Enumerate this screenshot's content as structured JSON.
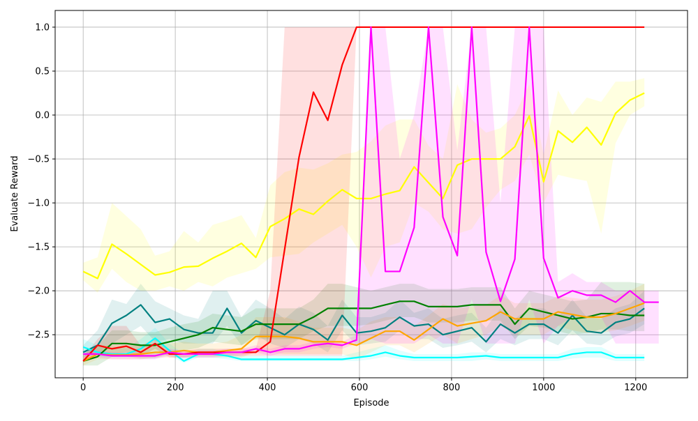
{
  "chart_data": {
    "type": "line",
    "xlabel": "Episode",
    "ylabel": "Evaluate Reward",
    "x": [
      0,
      31.25,
      62.5,
      93.75,
      125,
      156.25,
      187.5,
      218.75,
      250,
      281.25,
      312.5,
      343.75,
      375,
      406.25,
      437.5,
      468.75,
      500,
      531.25,
      562.5,
      593.75,
      625,
      656.25,
      687.5,
      718.75,
      750,
      781.25,
      812.5,
      843.75,
      875,
      906.25,
      937.5,
      968.75,
      1000,
      1031.25,
      1062.5,
      1093.75,
      1125,
      1156.25,
      1187.5,
      1218.75,
      1250
    ],
    "xlim": [
      -60.9,
      1312.5
    ],
    "ylim": [
      -2.99,
      1.19
    ],
    "xticks": [
      0,
      200,
      400,
      600,
      800,
      1000,
      1200
    ],
    "yticks": [
      {
        "value": -2.5,
        "label": "−2.5"
      },
      {
        "value": -2.0,
        "label": "−2.0"
      },
      {
        "value": -1.5,
        "label": "−1.5"
      },
      {
        "value": -1.0,
        "label": "−1.0"
      },
      {
        "value": -0.5,
        "label": "−0.5"
      },
      {
        "value": 0.0,
        "label": "0.0"
      },
      0.5,
      {
        "value": 1.0,
        "label": "1.0"
      }
    ],
    "grid": true,
    "series": [
      {
        "color": "#008080",
        "values": [
          -2.7,
          -2.62,
          -2.37,
          -2.28,
          -2.16,
          -2.36,
          -2.32,
          -2.44,
          -2.48,
          -2.48,
          -2.2,
          -2.48,
          -2.34,
          -2.42,
          -2.5,
          -2.38,
          -2.44,
          -2.56,
          -2.28,
          -2.48,
          -2.46,
          -2.42,
          -2.3,
          -2.4,
          -2.38,
          -2.5,
          -2.46,
          -2.42,
          -2.58,
          -2.38,
          -2.48,
          -2.38,
          -2.38,
          -2.48,
          -2.28,
          -2.46,
          -2.48,
          -2.36,
          -2.32,
          -2.2,
          null
        ],
        "lower": [
          -2.75,
          -2.72,
          -2.6,
          -2.5,
          -2.4,
          -2.58,
          -2.55,
          -2.6,
          -2.6,
          -2.6,
          -2.4,
          -2.62,
          -2.5,
          -2.6,
          -2.65,
          -2.55,
          -2.6,
          -2.7,
          -2.45,
          -2.62,
          -2.6,
          -2.58,
          -2.45,
          -2.55,
          -2.55,
          -2.65,
          -2.62,
          -2.58,
          -2.7,
          -2.55,
          -2.62,
          -2.55,
          -2.55,
          -2.62,
          -2.45,
          -2.6,
          -2.62,
          -2.52,
          -2.48,
          -2.38,
          null
        ],
        "upper": [
          -2.62,
          -2.45,
          -2.1,
          -2.15,
          -1.92,
          -2.12,
          -2.2,
          -2.28,
          -2.32,
          -2.0,
          -2.0,
          -2.3,
          -2.1,
          -2.2,
          -2.32,
          -2.18,
          -2.25,
          -2.4,
          -2.1,
          -2.3,
          -2.3,
          -2.25,
          -2.1,
          -2.25,
          -2.2,
          -2.32,
          -2.28,
          -2.25,
          -2.42,
          -2.2,
          -2.32,
          -2.2,
          -2.2,
          -2.3,
          -2.1,
          -2.3,
          -2.32,
          -2.2,
          -2.15,
          -2.0,
          null
        ]
      },
      {
        "color": "#00ffff",
        "values": [
          -2.64,
          -2.7,
          -2.72,
          -2.72,
          -2.66,
          -2.54,
          -2.68,
          -2.8,
          -2.72,
          -2.72,
          -2.74,
          -2.78,
          -2.78,
          -2.78,
          -2.78,
          -2.78,
          -2.78,
          -2.78,
          -2.78,
          -2.76,
          -2.74,
          -2.7,
          -2.74,
          -2.76,
          -2.76,
          -2.76,
          -2.76,
          -2.75,
          -2.74,
          -2.76,
          -2.76,
          -2.76,
          -2.76,
          -2.76,
          -2.72,
          -2.7,
          -2.7,
          -2.76,
          -2.76,
          -2.76,
          null
        ],
        "lower": [
          -2.72,
          -2.75,
          -2.76,
          -2.76,
          -2.74,
          -2.66,
          -2.74,
          -2.82,
          -2.76,
          -2.76,
          -2.78,
          -2.8,
          -2.8,
          -2.8,
          -2.8,
          -2.8,
          -2.8,
          -2.8,
          -2.8,
          -2.8,
          -2.78,
          -2.75,
          -2.78,
          -2.8,
          -2.8,
          -2.8,
          -2.8,
          -2.8,
          -2.78,
          -2.8,
          -2.8,
          -2.8,
          -2.8,
          -2.8,
          -2.77,
          -2.76,
          -2.76,
          -2.8,
          -2.8,
          -2.8,
          null
        ],
        "upper": [
          -2.55,
          -2.62,
          -2.65,
          -2.65,
          -2.55,
          -2.42,
          -2.6,
          -2.72,
          -2.66,
          -2.66,
          -2.7,
          -2.74,
          -2.74,
          -2.74,
          -2.74,
          -2.74,
          -2.74,
          -2.74,
          -2.74,
          -2.7,
          -2.66,
          -2.62,
          -2.68,
          -2.72,
          -2.72,
          -2.72,
          -2.72,
          -2.7,
          -2.7,
          -2.72,
          -2.72,
          -2.72,
          -2.72,
          -2.72,
          -2.66,
          -2.64,
          -2.64,
          -2.72,
          -2.72,
          -2.72,
          null
        ]
      },
      {
        "color": "#008000",
        "values": [
          -2.8,
          -2.75,
          -2.6,
          -2.6,
          -2.62,
          -2.62,
          -2.58,
          -2.54,
          -2.5,
          -2.42,
          -2.44,
          -2.46,
          -2.38,
          -2.38,
          -2.38,
          -2.38,
          -2.3,
          -2.2,
          -2.2,
          -2.2,
          -2.2,
          -2.16,
          -2.12,
          -2.12,
          -2.18,
          -2.18,
          -2.18,
          -2.16,
          -2.16,
          -2.16,
          -2.38,
          -2.2,
          -2.24,
          -2.28,
          -2.32,
          -2.3,
          -2.26,
          -2.26,
          -2.28,
          -2.28,
          null
        ],
        "lower": [
          -2.85,
          -2.85,
          -2.75,
          -2.75,
          -2.77,
          -2.77,
          -2.72,
          -2.68,
          -2.65,
          -2.58,
          -2.6,
          -2.62,
          -2.55,
          -2.55,
          -2.55,
          -2.55,
          -2.46,
          -2.4,
          -2.4,
          -2.4,
          -2.38,
          -2.34,
          -2.3,
          -2.3,
          -2.36,
          -2.36,
          -2.36,
          -2.34,
          -2.34,
          -2.34,
          -2.55,
          -2.4,
          -2.42,
          -2.46,
          -2.5,
          -2.48,
          -2.44,
          -2.44,
          -2.46,
          -2.46,
          null
        ],
        "upper": [
          -2.72,
          -2.62,
          -2.45,
          -2.45,
          -2.47,
          -2.47,
          -2.42,
          -2.38,
          -2.35,
          -2.26,
          -2.28,
          -2.3,
          -2.2,
          -2.2,
          -2.2,
          -2.2,
          -2.1,
          -1.92,
          -1.92,
          -1.96,
          -2.0,
          -1.96,
          -1.92,
          -1.92,
          -1.98,
          -1.98,
          -1.98,
          -1.96,
          -1.96,
          -1.96,
          -2.2,
          -2.0,
          -2.04,
          -2.08,
          -2.12,
          -2.1,
          -1.9,
          -1.9,
          -1.9,
          -1.92,
          null
        ]
      },
      {
        "color": "#ffa500",
        "values": [
          -2.8,
          -2.72,
          -2.73,
          -2.73,
          -2.72,
          -2.7,
          -2.7,
          -2.68,
          -2.7,
          -2.7,
          -2.68,
          -2.66,
          -2.52,
          -2.52,
          -2.52,
          -2.54,
          -2.58,
          -2.58,
          -2.58,
          -2.62,
          -2.54,
          -2.46,
          -2.46,
          -2.56,
          -2.44,
          -2.32,
          -2.4,
          -2.37,
          -2.34,
          -2.24,
          -2.32,
          -2.32,
          -2.32,
          -2.24,
          -2.27,
          -2.3,
          -2.3,
          -2.26,
          -2.2,
          -2.14,
          null
        ],
        "lower": [
          -2.85,
          -2.78,
          -2.78,
          -2.78,
          -2.78,
          -2.76,
          -2.76,
          -2.76,
          -2.76,
          -2.76,
          -2.76,
          -2.76,
          -2.7,
          -2.7,
          -2.72,
          -2.72,
          -2.72,
          -2.72,
          -2.72,
          -2.78,
          -2.7,
          -2.62,
          -2.62,
          -2.7,
          -2.6,
          -2.5,
          -2.6,
          -2.55,
          -2.5,
          -2.4,
          -2.5,
          -2.5,
          -2.5,
          -2.4,
          -2.45,
          -2.48,
          -2.48,
          -2.45,
          -2.4,
          -2.34,
          null
        ],
        "upper": [
          -2.72,
          -2.62,
          -2.62,
          -2.62,
          -2.62,
          -2.6,
          -2.6,
          -2.58,
          -2.6,
          -2.6,
          -2.58,
          -2.5,
          -2.3,
          -2.3,
          -2.3,
          -2.35,
          -2.42,
          -2.42,
          -2.42,
          -2.45,
          -2.35,
          -2.3,
          -2.3,
          -2.4,
          -2.28,
          -2.15,
          -2.2,
          -2.18,
          -2.16,
          -2.05,
          -2.14,
          -2.14,
          -2.14,
          -2.06,
          -2.08,
          -2.1,
          -2.1,
          -2.06,
          -2.0,
          -1.92,
          null
        ]
      },
      {
        "color": "#ffff00",
        "values": [
          -1.78,
          -1.86,
          -1.47,
          -1.58,
          -1.7,
          -1.82,
          -1.79,
          -1.73,
          -1.72,
          -1.63,
          -1.55,
          -1.46,
          -1.62,
          -1.27,
          -1.18,
          -1.07,
          -1.13,
          -0.98,
          -0.85,
          -0.95,
          -0.95,
          -0.9,
          -0.86,
          -0.59,
          -0.77,
          -0.95,
          -0.57,
          -0.5,
          -0.5,
          -0.5,
          -0.36,
          -0.01,
          -0.76,
          -0.18,
          -0.31,
          -0.14,
          -0.34,
          0.02,
          0.17,
          0.25,
          null
        ],
        "lower": [
          -1.88,
          -2.02,
          -1.75,
          -1.9,
          -2.0,
          -2.0,
          -1.95,
          -2.0,
          -1.9,
          -1.95,
          -1.85,
          -1.8,
          -1.75,
          -1.62,
          -1.6,
          -1.58,
          -1.45,
          -1.35,
          -1.25,
          -1.5,
          -1.85,
          -1.5,
          -1.45,
          -1.0,
          -1.1,
          -1.3,
          -1.35,
          -1.3,
          -1.05,
          -0.85,
          -0.75,
          -0.45,
          -1.0,
          -0.68,
          -0.72,
          -0.75,
          -1.35,
          -0.32,
          0.0,
          0.1,
          null
        ],
        "upper": [
          -1.68,
          -1.62,
          -1.0,
          -1.15,
          -1.3,
          -1.6,
          -1.55,
          -1.32,
          -1.45,
          -1.25,
          -1.2,
          -1.14,
          -1.4,
          -0.8,
          -0.65,
          -0.6,
          -0.62,
          -0.55,
          -0.45,
          -0.42,
          -0.3,
          -0.12,
          -0.05,
          -0.05,
          -0.35,
          -0.5,
          0.35,
          -0.05,
          -0.2,
          -0.15,
          0.0,
          0.35,
          -0.45,
          0.28,
          0.0,
          0.2,
          0.15,
          0.38,
          0.38,
          0.42,
          null
        ]
      },
      {
        "color": "#ff0000",
        "values": [
          -2.8,
          -2.62,
          -2.66,
          -2.63,
          -2.7,
          -2.6,
          -2.72,
          -2.72,
          -2.7,
          -2.7,
          -2.7,
          -2.7,
          -2.7,
          -2.58,
          -1.53,
          -0.48,
          0.26,
          -0.06,
          0.57,
          1.0,
          1.0,
          1.0,
          1.0,
          1.0,
          1.0,
          1.0,
          1.0,
          1.0,
          1.0,
          1.0,
          1.0,
          1.0,
          1.0,
          1.0,
          1.0,
          1.0,
          1.0,
          1.0,
          1.0,
          1.0,
          null
        ],
        "lower": [
          -2.8,
          -2.7,
          -2.72,
          -2.7,
          -2.75,
          -2.66,
          -2.76,
          -2.76,
          -2.74,
          -2.74,
          -2.74,
          -2.74,
          -2.74,
          -2.74,
          -2.74,
          -2.74,
          -2.74,
          -2.74,
          -2.74,
          1.0,
          1.0,
          1.0,
          1.0,
          1.0,
          1.0,
          1.0,
          1.0,
          1.0,
          1.0,
          1.0,
          1.0,
          1.0,
          1.0,
          1.0,
          1.0,
          1.0,
          1.0,
          1.0,
          1.0,
          1.0,
          null
        ],
        "upper": [
          -2.76,
          -2.55,
          -2.4,
          -2.4,
          -2.62,
          -2.55,
          -2.68,
          -2.68,
          -2.66,
          -2.66,
          -2.66,
          -2.66,
          -2.66,
          -2.0,
          1.0,
          1.0,
          1.0,
          1.0,
          1.0,
          1.0,
          1.0,
          1.0,
          1.0,
          1.0,
          1.0,
          1.0,
          1.0,
          1.0,
          1.0,
          1.0,
          1.0,
          1.0,
          1.0,
          1.0,
          1.0,
          1.0,
          1.0,
          1.0,
          1.0,
          1.0,
          null
        ]
      },
      {
        "color": "#ff00ff",
        "values": [
          -2.72,
          -2.72,
          -2.74,
          -2.74,
          -2.74,
          -2.74,
          -2.7,
          -2.72,
          -2.72,
          -2.72,
          -2.7,
          -2.7,
          -2.66,
          -2.7,
          -2.66,
          -2.66,
          -2.62,
          -2.6,
          -2.62,
          -2.56,
          1.0,
          -1.78,
          -1.78,
          -1.28,
          1.0,
          -1.16,
          -1.6,
          1.0,
          -1.56,
          -2.12,
          -1.64,
          1.0,
          -1.63,
          -2.08,
          -2.0,
          -2.05,
          -2.05,
          -2.13,
          -2.0,
          -2.13,
          -2.13
        ],
        "lower": [
          -2.76,
          -2.76,
          -2.78,
          -2.78,
          -2.78,
          -2.78,
          -2.74,
          -2.76,
          -2.76,
          -2.76,
          -2.74,
          -2.74,
          -2.7,
          -2.74,
          -2.7,
          -2.7,
          -2.66,
          -2.64,
          -2.66,
          -2.6,
          -2.55,
          -2.6,
          -2.6,
          -2.6,
          -2.5,
          -2.6,
          -2.6,
          -2.1,
          -2.6,
          -2.6,
          -2.6,
          -2.1,
          -2.6,
          -2.4,
          -2.3,
          -2.3,
          -2.3,
          -2.6,
          -2.6,
          -2.6,
          -2.6
        ],
        "upper": [
          -2.68,
          -2.68,
          -2.7,
          -2.7,
          -2.7,
          -2.7,
          -2.66,
          -2.68,
          -2.68,
          -2.68,
          -2.66,
          -2.66,
          -2.62,
          -2.66,
          -2.62,
          -2.62,
          -2.58,
          -2.56,
          -2.58,
          -2.5,
          1.0,
          1.0,
          -0.5,
          0.0,
          1.0,
          1.0,
          -0.4,
          1.0,
          1.0,
          -1.0,
          1.0,
          1.0,
          1.0,
          -1.9,
          -1.8,
          -1.9,
          -1.9,
          -2.0,
          -2.0,
          -2.0,
          -2.0
        ]
      }
    ]
  }
}
